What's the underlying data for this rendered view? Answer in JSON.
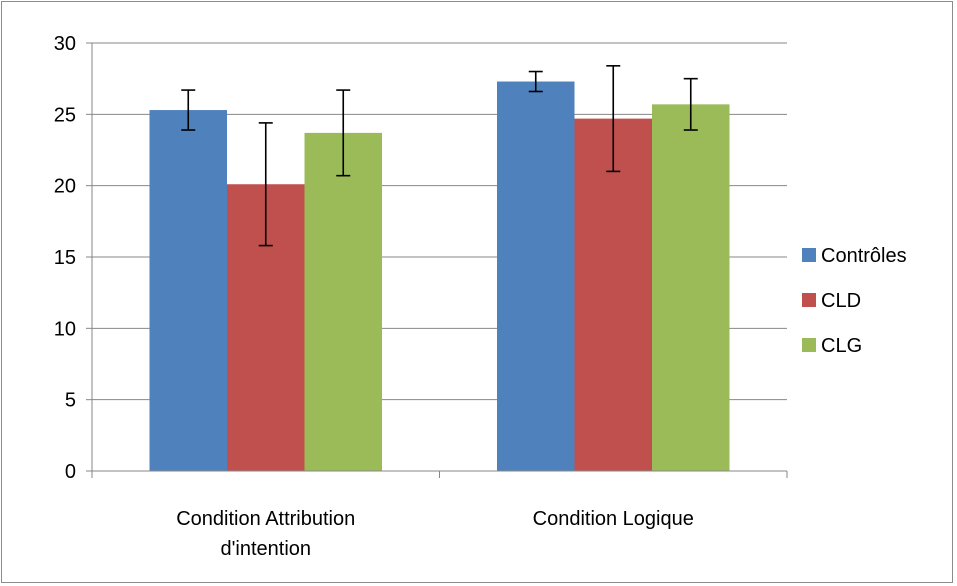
{
  "chart_data": {
    "type": "bar",
    "title": "",
    "xlabel": "",
    "ylabel": "",
    "ylim": [
      0,
      30
    ],
    "yticks": [
      0,
      5,
      10,
      15,
      20,
      25,
      30
    ],
    "grid": true,
    "legend_position": "right",
    "categories": [
      [
        "Condition Attribution",
        "d'intention"
      ],
      [
        "Condition Logique"
      ]
    ],
    "series": [
      {
        "name": "Contrôles",
        "color": "#4f81bd",
        "values": [
          25.3,
          27.3
        ],
        "error": [
          [
            23.9,
            26.7
          ],
          [
            26.6,
            28.0
          ]
        ]
      },
      {
        "name": "CLD",
        "color": "#c0504d",
        "values": [
          20.1,
          24.7
        ],
        "error": [
          [
            15.8,
            24.4
          ],
          [
            21.0,
            28.4
          ]
        ]
      },
      {
        "name": "CLG",
        "color": "#9bbb59",
        "values": [
          23.7,
          25.7
        ],
        "error": [
          [
            20.7,
            26.7
          ],
          [
            23.9,
            27.5
          ]
        ]
      }
    ]
  }
}
